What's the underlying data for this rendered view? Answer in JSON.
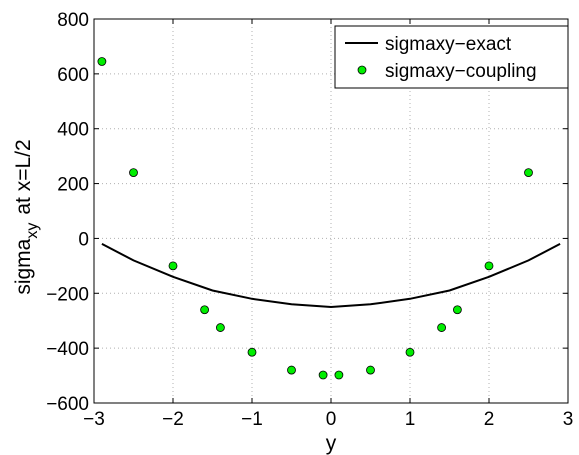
{
  "chart_data": {
    "type": "line",
    "title": "",
    "xlabel": "y",
    "ylabel": {
      "base": "sigma",
      "subscript": "xy",
      "suffix": "at x=L/2"
    },
    "xlim": [
      -3,
      3
    ],
    "ylim": [
      -600,
      800
    ],
    "xticks": [
      -3,
      -2,
      -1,
      0,
      1,
      2,
      3
    ],
    "yticks": [
      -600,
      -400,
      -200,
      0,
      200,
      400,
      600,
      800
    ],
    "xtick_labels": [
      "−3",
      "−2",
      "−1",
      "0",
      "1",
      "2",
      "3"
    ],
    "ytick_labels": [
      "−600",
      "−400",
      "−200",
      "0",
      "200",
      "400",
      "600",
      "800"
    ],
    "grid": true,
    "legend_position": "top-right",
    "series": [
      {
        "name": "sigmaxy−exact",
        "style": "line",
        "color": "#000000",
        "x": [
          -2.9,
          -2.5,
          -2.0,
          -1.5,
          -1.0,
          -0.5,
          0.0,
          0.5,
          1.0,
          1.5,
          2.0,
          2.5,
          2.9
        ],
        "y": [
          -20,
          -80,
          -140,
          -190,
          -220,
          -240,
          -250,
          -240,
          -220,
          -190,
          -140,
          -80,
          -20
        ]
      },
      {
        "name": "sigmaxy−coupling",
        "style": "markers",
        "color": "#00ee00",
        "x": [
          -2.9,
          -2.5,
          -2.0,
          -1.6,
          -1.4,
          -1.0,
          -0.5,
          -0.1,
          0.1,
          0.5,
          1.0,
          1.4,
          1.6,
          2.0,
          2.5
        ],
        "y": [
          645,
          240,
          -100,
          -260,
          -325,
          -415,
          -480,
          -498,
          -498,
          -480,
          -415,
          -325,
          -260,
          -100,
          240
        ]
      }
    ]
  }
}
